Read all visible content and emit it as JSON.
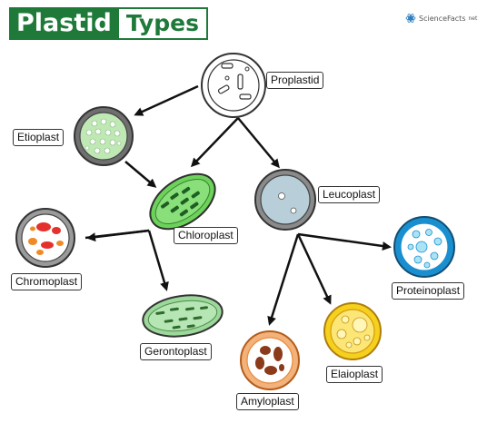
{
  "title": {
    "part1": "Plastid",
    "part2": "Types"
  },
  "brand": {
    "text": "ScienceFacts",
    "suffix": "net"
  },
  "labels": {
    "proplastid": "Proplastid",
    "etioplast": "Etioplast",
    "chloroplast": "Chloroplast",
    "leucoplast": "Leucoplast",
    "chromoplast": "Chromoplast",
    "gerontoplast": "Gerontoplast",
    "proteinoplast": "Proteinoplast",
    "elaioplast": "Elaioplast",
    "amyloplast": "Amyloplast"
  },
  "colors": {
    "title_green": "#1f7a3a",
    "chloroplast_green": "#6cd35a",
    "gerontoplast_green": "#9bd89a",
    "etioplast_fill": "#bfe8b5",
    "leucoplast_fill": "#b8cfd9",
    "chromoplast_red": "#e5312b",
    "chromoplast_orange": "#f08a24",
    "proteinoplast_blue": "#1a8fd0",
    "elaioplast_yellow": "#f5d01c",
    "amyloplast_orange": "#e88a3c",
    "amyloplast_brown": "#8b3a1a"
  }
}
